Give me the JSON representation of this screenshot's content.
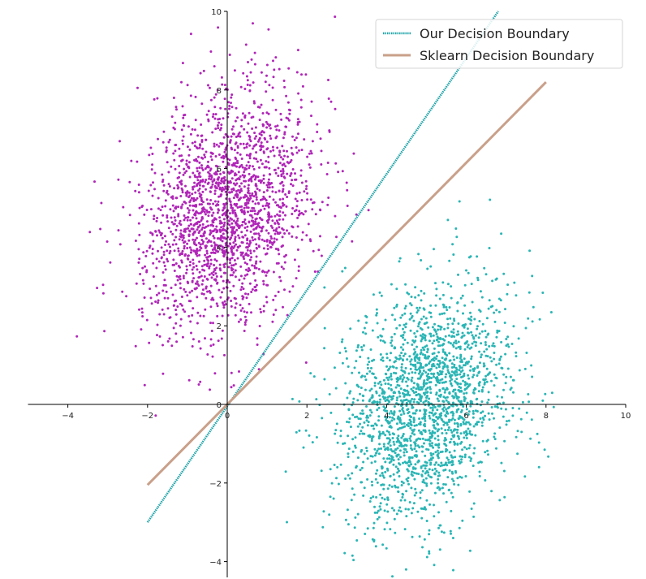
{
  "chart_data": {
    "type": "scatter",
    "title": "",
    "xlabel": "",
    "ylabel": "",
    "xlim": [
      -5,
      10
    ],
    "ylim": [
      -4.4,
      10
    ],
    "x_ticks": [
      -4,
      -2,
      0,
      2,
      4,
      6,
      8,
      10
    ],
    "y_ticks": [
      -4,
      -2,
      0,
      2,
      4,
      6,
      8,
      10
    ],
    "x_tick_labels": [
      "−4",
      "−2",
      "0",
      "2",
      "4",
      "6",
      "8",
      "10"
    ],
    "y_tick_labels": [
      "−4",
      "−2",
      "0",
      "2",
      "4",
      "6",
      "8",
      "10"
    ],
    "grid": false,
    "spines": "centered-at-origin",
    "legend_position": "top-right",
    "scatter_series": [
      {
        "color": "#b025b8",
        "count": 2000,
        "mean": [
          0,
          5
        ],
        "std": [
          1.05,
          1.5
        ],
        "correlation": 0.25,
        "seed": 7
      },
      {
        "color": "#2ab5b5",
        "count": 2000,
        "mean": [
          5,
          0
        ],
        "std": [
          1.1,
          1.5
        ],
        "correlation": 0.25,
        "seed": 13
      }
    ],
    "lines": [
      {
        "name": "Our Decision Boundary",
        "color": "#1aa3a8",
        "style": "dotted",
        "x": [
          -2,
          6.8
        ],
        "y": [
          -3,
          10
        ]
      },
      {
        "name": "Sklearn Decision Boundary",
        "color": "#c9a08a",
        "style": "solid",
        "x": [
          -2,
          8
        ],
        "y": [
          -2.05,
          8.2
        ]
      }
    ]
  }
}
